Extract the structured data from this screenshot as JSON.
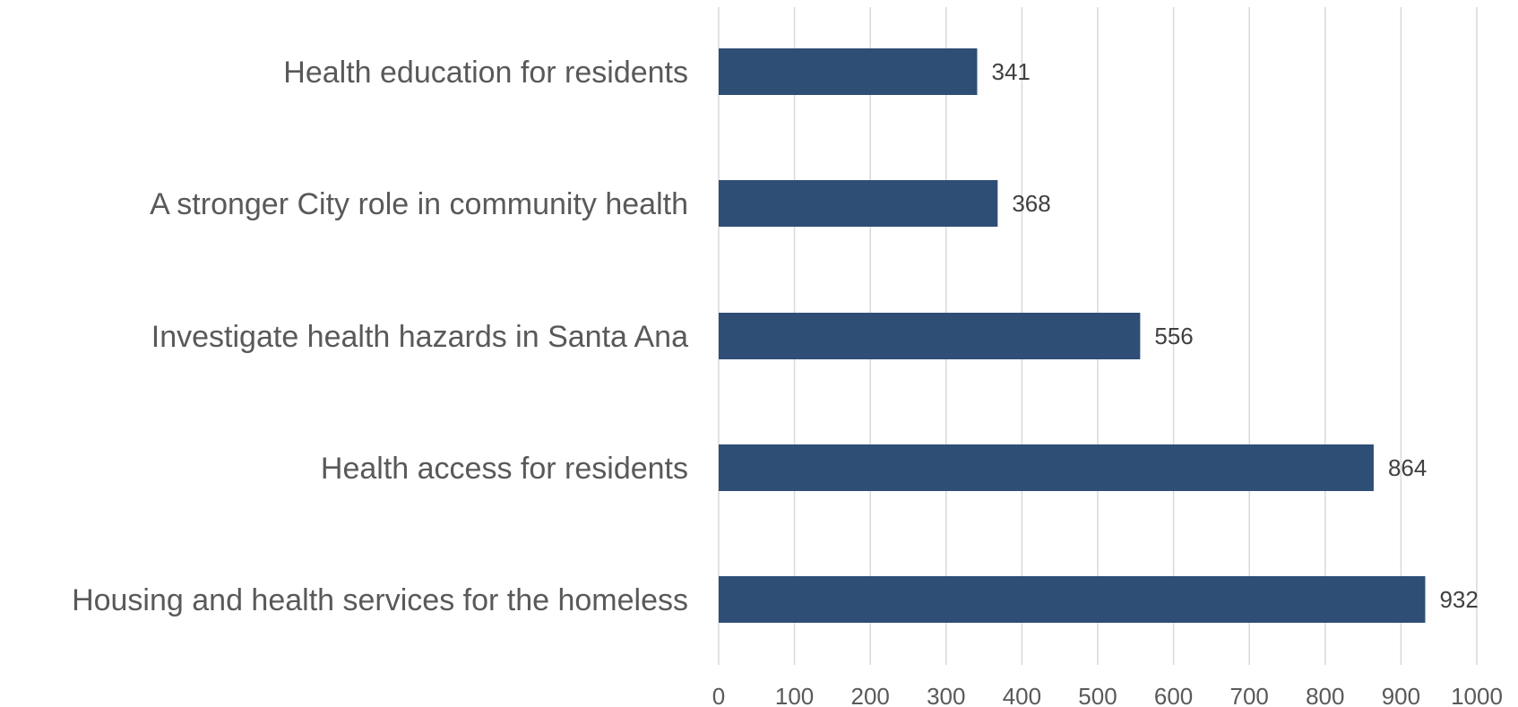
{
  "chart_data": {
    "type": "bar",
    "orientation": "horizontal",
    "categories": [
      "Health education for residents",
      "A stronger City role in community health",
      "Investigate health hazards in Santa Ana",
      "Health access for residents",
      "Housing and health services for the homeless"
    ],
    "values": [
      341,
      368,
      556,
      864,
      932
    ],
    "data_labels": [
      "341",
      "368",
      "556",
      "864",
      "932"
    ],
    "xlim": [
      0,
      1000
    ],
    "x_ticks": [
      0,
      100,
      200,
      300,
      400,
      500,
      600,
      700,
      800,
      900,
      1000
    ],
    "x_tick_labels": [
      "0",
      "100",
      "200",
      "300",
      "400",
      "500",
      "600",
      "700",
      "800",
      "900",
      "1000"
    ],
    "grid": "vertical",
    "legend": "none",
    "bar_color": "#2e4e76",
    "grid_color": "#d9d9d9",
    "label_color": "#595959"
  }
}
